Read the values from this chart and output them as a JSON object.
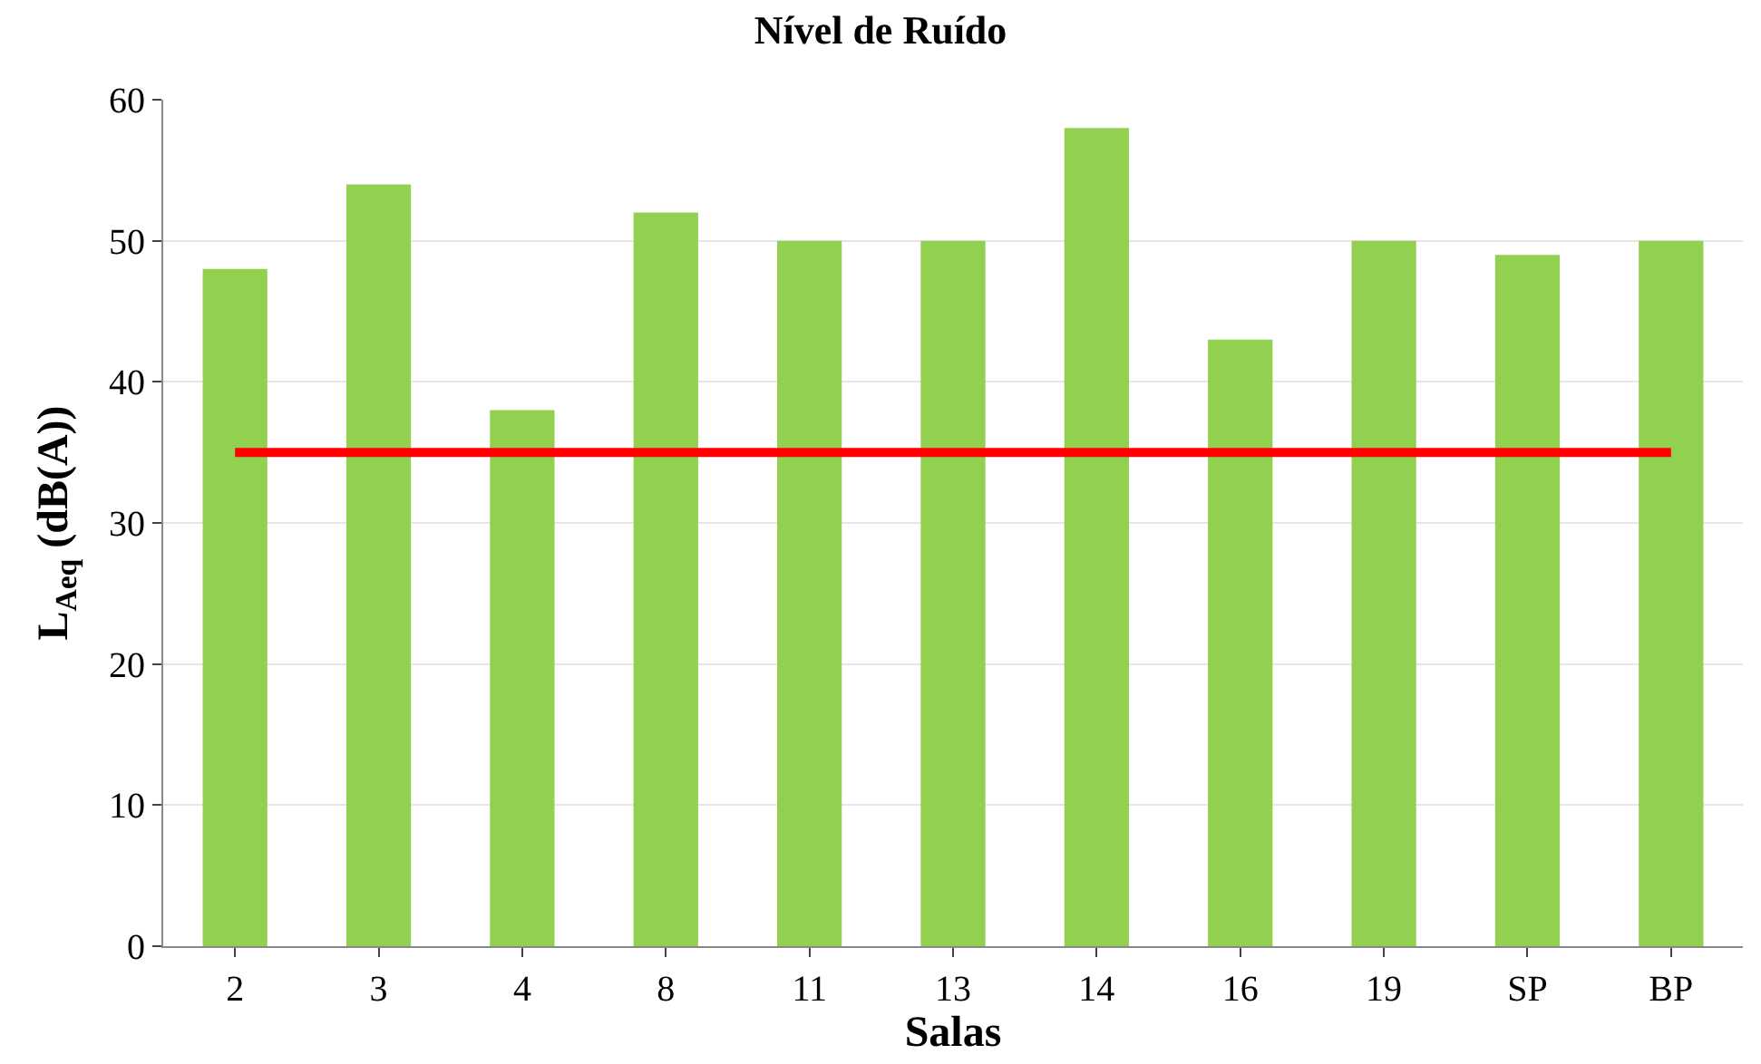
{
  "chart_data": {
    "type": "bar",
    "title": "Nível de Ruído",
    "xlabel": "Salas",
    "ylabel": "L$_{Aeq}$ (dB(A))",
    "categories": [
      "2",
      "3",
      "4",
      "8",
      "11",
      "13",
      "14",
      "16",
      "19",
      "SP",
      "BP"
    ],
    "series": [
      {
        "color": "#92d050",
        "values": [
          48,
          54,
          38,
          52,
          50,
          50,
          58,
          43,
          50,
          49,
          50
        ]
      },
      {
        "type": "line",
        "color": "#ff0000",
        "values": [
          35,
          35,
          35,
          35,
          35,
          35,
          35,
          35,
          35,
          35,
          35
        ]
      }
    ],
    "ylim": [
      0,
      60
    ],
    "yticks": [
      0,
      10,
      20,
      30,
      40,
      50,
      60
    ],
    "grid": "y",
    "marker": "none"
  }
}
